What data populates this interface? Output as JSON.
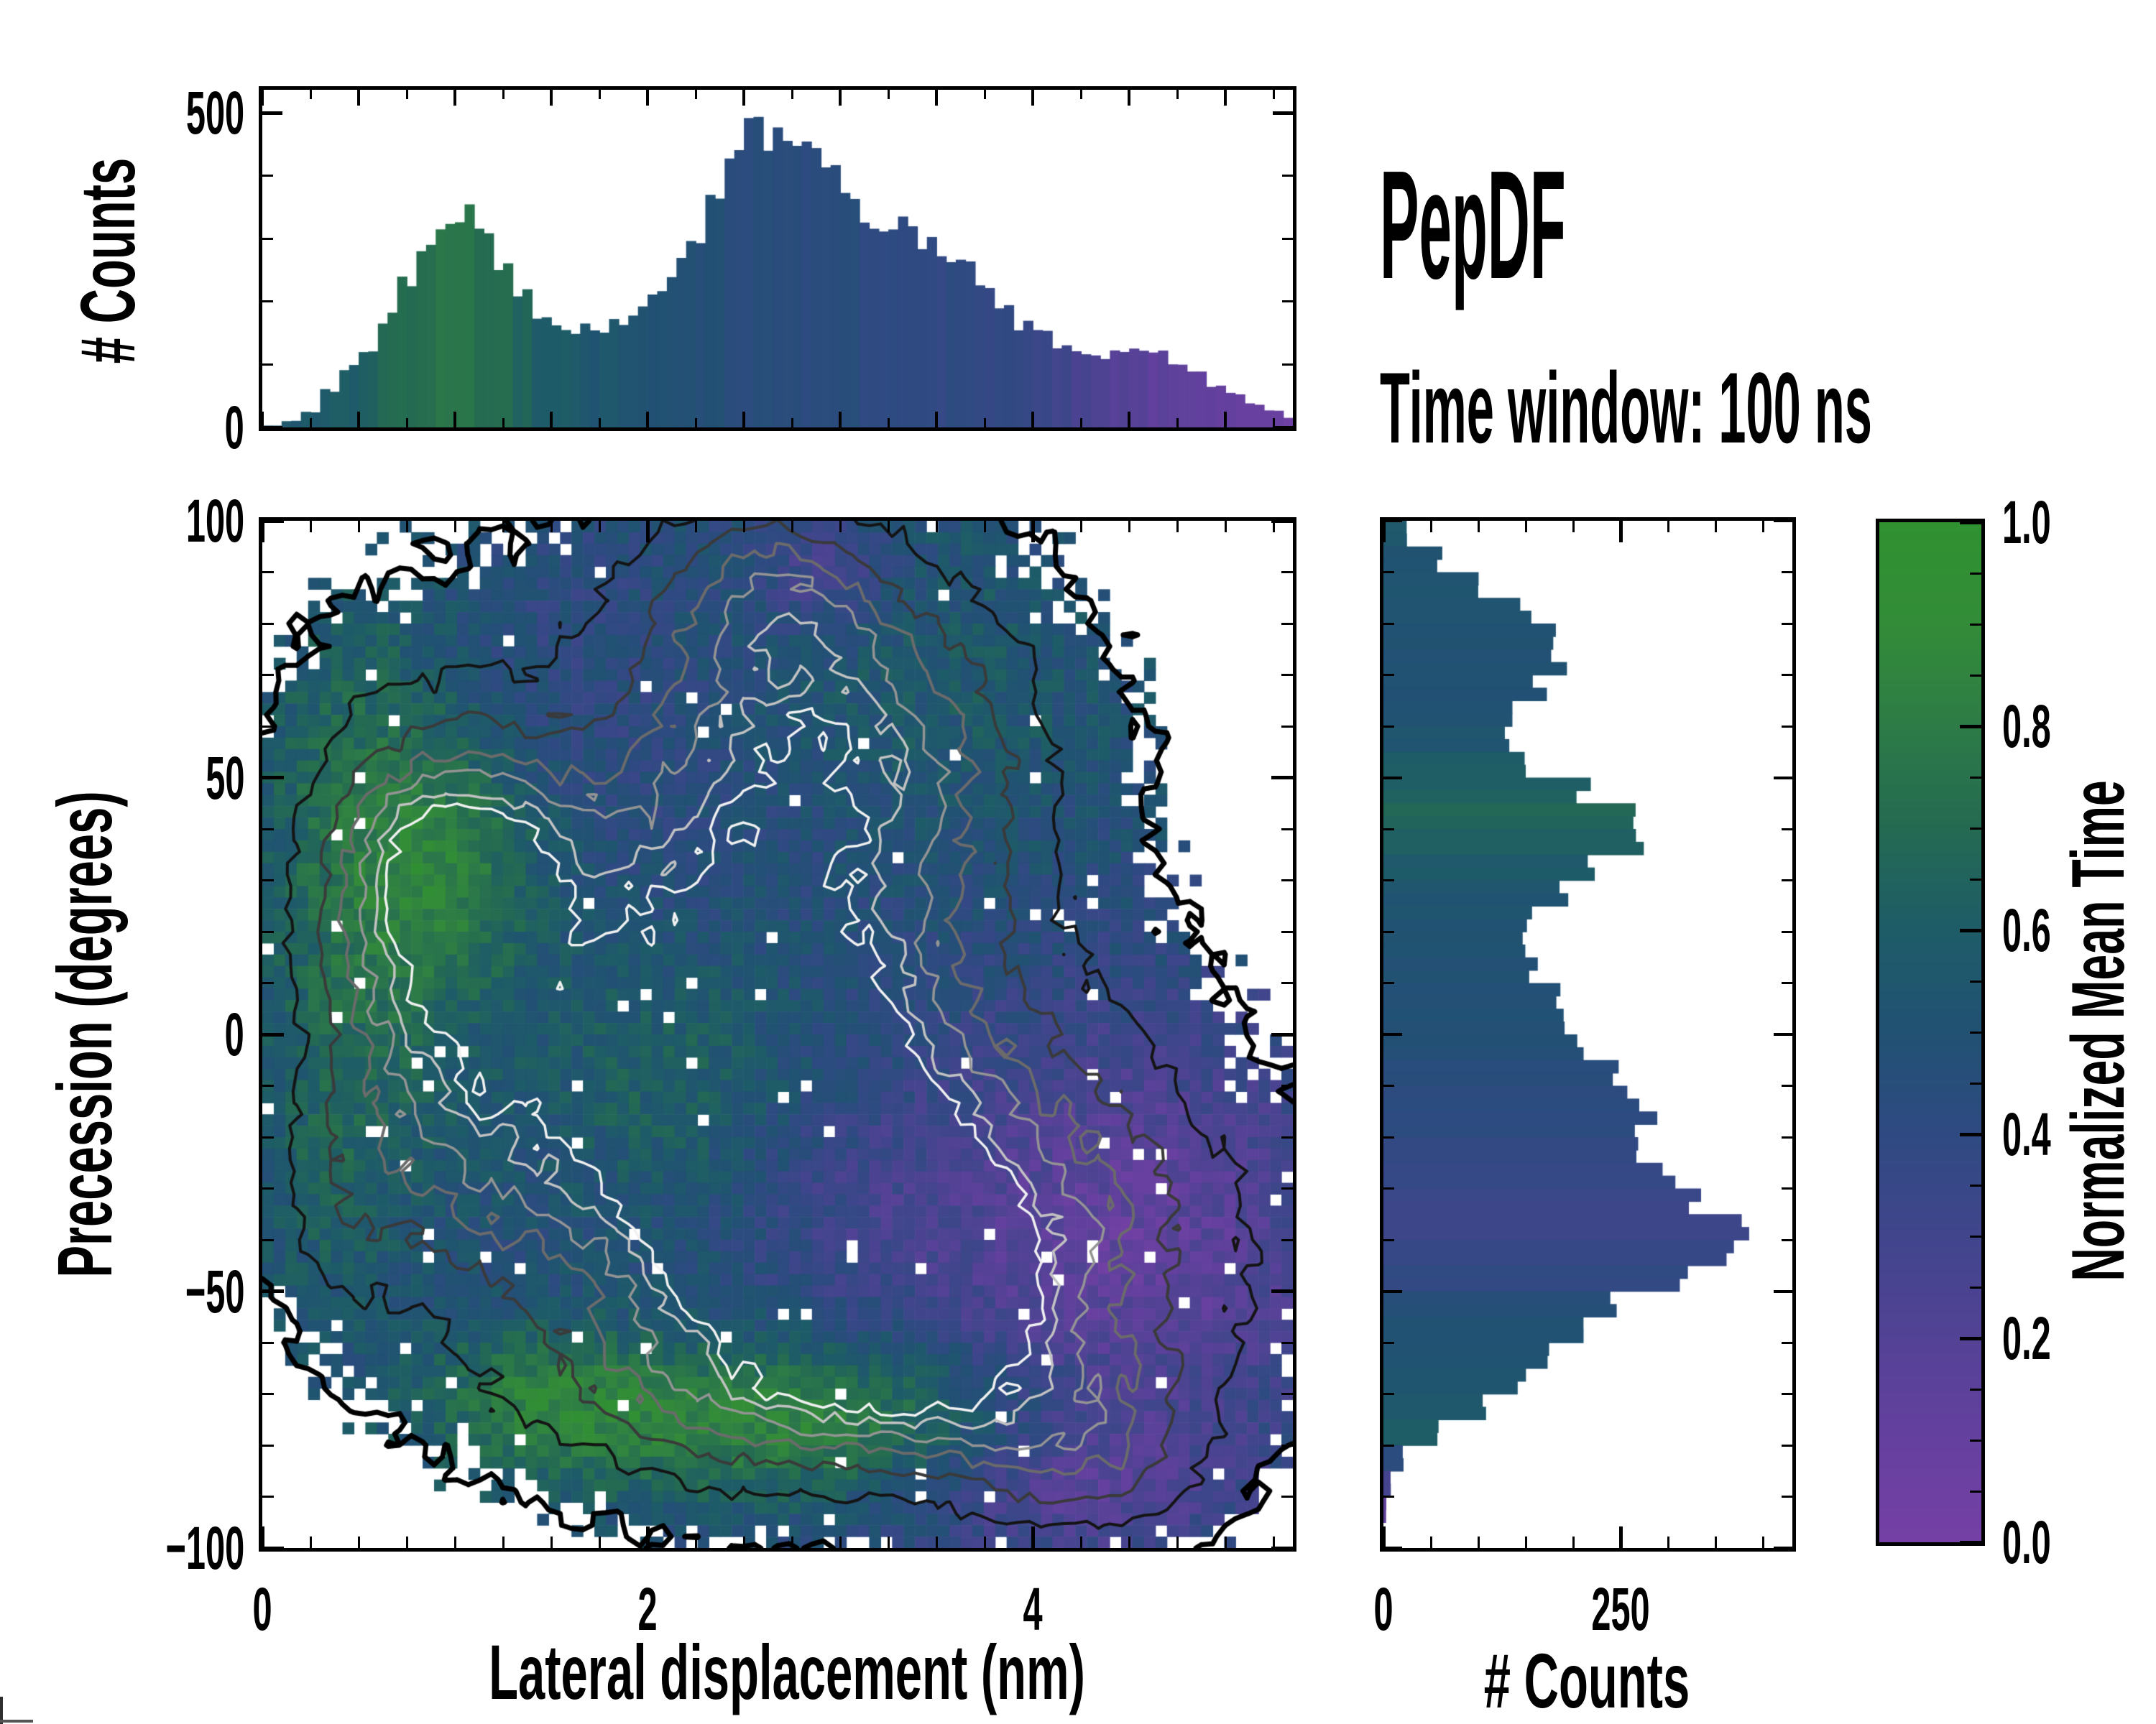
{
  "titles": {
    "main": "PepDF",
    "subtitle": "Time window: 100 ns"
  },
  "chart_data": {
    "type": "heatmap",
    "title": "PepDF",
    "annotation": "Time window: 100 ns",
    "colormap": {
      "label": "Normalized Mean Time",
      "tick_values": [
        0.0,
        0.2,
        0.4,
        0.6,
        0.8,
        1.0
      ],
      "tick_labels": [
        "0.0",
        "0.2",
        "0.4",
        "0.6",
        "0.8",
        "1.0"
      ],
      "minor_tick_step": 0.05,
      "stops": [
        [
          0,
          "#7540a5"
        ],
        [
          0.1,
          "#65409f"
        ],
        [
          0.2,
          "#534295"
        ],
        [
          0.3,
          "#41458c"
        ],
        [
          0.4,
          "#2f4a82"
        ],
        [
          0.5,
          "#215173"
        ],
        [
          0.6,
          "#1e5c68"
        ],
        [
          0.7,
          "#246a52"
        ],
        [
          0.8,
          "#2d7b47"
        ],
        [
          0.9,
          "#338c38"
        ],
        [
          1,
          "#2f9130"
        ]
      ]
    },
    "top_histogram": {
      "type": "bar",
      "ylabel": "# Counts",
      "ylim": [
        0,
        537
      ],
      "ytick_values": [
        0,
        500
      ],
      "ytick_labels": [
        "0",
        "500"
      ],
      "y_minor_tick_step": 100,
      "x_start": 0.05,
      "x_step": 0.1,
      "counts": [
        3,
        10,
        25,
        60,
        95,
        120,
        175,
        235,
        285,
        320,
        335,
        310,
        265,
        215,
        185,
        160,
        155,
        160,
        165,
        185,
        215,
        255,
        300,
        360,
        430,
        480,
        455,
        450,
        430,
        400,
        365,
        330,
        305,
        315,
        300,
        275,
        250,
        225,
        195,
        165,
        148,
        130,
        115,
        112,
        118,
        122,
        118,
        105,
        88,
        68,
        52,
        38,
        26,
        15,
        6
      ],
      "mean_time": [
        0.54,
        0.55,
        0.57,
        0.59,
        0.61,
        0.64,
        0.68,
        0.71,
        0.73,
        0.75,
        0.75,
        0.73,
        0.7,
        0.65,
        0.61,
        0.58,
        0.56,
        0.55,
        0.54,
        0.53,
        0.51,
        0.49,
        0.48,
        0.47,
        0.46,
        0.45,
        0.45,
        0.44,
        0.44,
        0.43,
        0.43,
        0.42,
        0.42,
        0.41,
        0.41,
        0.4,
        0.4,
        0.39,
        0.38,
        0.36,
        0.33,
        0.3,
        0.26,
        0.22,
        0.19,
        0.16,
        0.14,
        0.12,
        0.11,
        0.1,
        0.09,
        0.08,
        0.07,
        0.06,
        0.05
      ]
    },
    "right_histogram": {
      "type": "bar",
      "xlabel": "# Counts",
      "xlim": [
        0,
        431
      ],
      "xtick_values": [
        0,
        250
      ],
      "xtick_labels": [
        "0",
        "250"
      ],
      "x_minor_tick_step": 50,
      "y_start": 97.5,
      "y_step": -5,
      "counts": [
        6,
        25,
        60,
        105,
        150,
        175,
        190,
        165,
        140,
        135,
        160,
        215,
        275,
        260,
        225,
        185,
        160,
        150,
        165,
        185,
        200,
        215,
        235,
        255,
        270,
        285,
        305,
        335,
        380,
        350,
        300,
        245,
        205,
        175,
        145,
        105,
        55,
        20,
        8,
        3
      ],
      "mean_time": [
        0.55,
        0.55,
        0.54,
        0.53,
        0.52,
        0.52,
        0.51,
        0.51,
        0.52,
        0.55,
        0.6,
        0.64,
        0.66,
        0.63,
        0.58,
        0.54,
        0.52,
        0.5,
        0.5,
        0.49,
        0.48,
        0.47,
        0.45,
        0.43,
        0.41,
        0.38,
        0.36,
        0.34,
        0.33,
        0.35,
        0.4,
        0.46,
        0.5,
        0.52,
        0.53,
        0.55,
        0.62,
        0.45,
        0.25,
        0.15
      ]
    },
    "heatmap": {
      "xlabel": "Lateral displacement (nm)",
      "ylabel": "Precession (degrees)",
      "xlim": [
        0,
        5.35
      ],
      "ylim": [
        -100,
        100
      ],
      "xtick_values": [
        0,
        2,
        4
      ],
      "xtick_labels": [
        "0",
        "2",
        "4"
      ],
      "x_minor_tick_step": 0.25,
      "ytick_values": [
        100,
        50,
        0,
        -50,
        -100
      ],
      "ytick_labels": [
        "100",
        "50",
        "0",
        "−50",
        "−100"
      ],
      "y_minor_tick_step": 10,
      "grid_cells": [
        90,
        90
      ],
      "seed": 20,
      "base_mean_time": 0.46,
      "mask_threshold": 0.17,
      "density_blobs": [
        [
          2.3,
          25,
          1.15,
          48,
          0.62
        ],
        [
          2.7,
          -25,
          1.0,
          40,
          0.6
        ],
        [
          1.05,
          33,
          0.38,
          16,
          0.45
        ],
        [
          0.6,
          30,
          0.45,
          35,
          0.35
        ],
        [
          2.55,
          -23,
          0.42,
          18,
          0.75
        ],
        [
          3.35,
          -45,
          0.38,
          14,
          0.7
        ],
        [
          3.2,
          60,
          0.75,
          25,
          0.45
        ],
        [
          4.35,
          -40,
          0.8,
          30,
          0.5
        ],
        [
          2.9,
          -70,
          1.1,
          14,
          0.45
        ],
        [
          1.1,
          -15,
          0.5,
          30,
          0.4
        ],
        [
          2.6,
          88,
          0.45,
          14,
          0.35
        ],
        [
          4.3,
          -85,
          0.5,
          12,
          0.35
        ],
        [
          0.35,
          -35,
          0.28,
          18,
          0.25
        ]
      ],
      "mean_time_blobs": [
        [
          0.55,
          35,
          0.42,
          40,
          0.3
        ],
        [
          1.05,
          33,
          0.33,
          16,
          0.22
        ],
        [
          2.8,
          -75,
          1.15,
          11,
          0.42
        ],
        [
          1.45,
          -70,
          0.4,
          10,
          0.2
        ],
        [
          2.15,
          -8,
          0.55,
          20,
          0.17
        ],
        [
          3.2,
          65,
          1.0,
          28,
          0.13
        ],
        [
          4.5,
          -42,
          0.85,
          32,
          -0.34
        ],
        [
          4.2,
          -85,
          0.6,
          12,
          -0.25
        ],
        [
          3.0,
          -32,
          0.45,
          16,
          -0.1
        ],
        [
          1.7,
          70,
          0.8,
          22,
          -0.08
        ],
        [
          2.6,
          40,
          0.7,
          25,
          -0.06
        ],
        [
          0.35,
          -30,
          0.3,
          20,
          0.1
        ],
        [
          2.9,
          90,
          0.25,
          8,
          -0.22
        ]
      ],
      "contour_levels": [
        {
          "level": 0.17,
          "color": "#000000",
          "width": 7
        },
        {
          "level": 0.38,
          "color": "#141414",
          "width": 4
        },
        {
          "level": 0.55,
          "color": "#3a3a3a",
          "width": 4
        },
        {
          "level": 0.68,
          "color": "#6b6b6b",
          "width": 4
        },
        {
          "level": 0.78,
          "color": "#949494",
          "width": 3.5
        },
        {
          "level": 0.87,
          "color": "#c2c2c2",
          "width": 3.5
        },
        {
          "level": 0.94,
          "color": "#f1f1f1",
          "width": 3.5
        }
      ]
    }
  }
}
